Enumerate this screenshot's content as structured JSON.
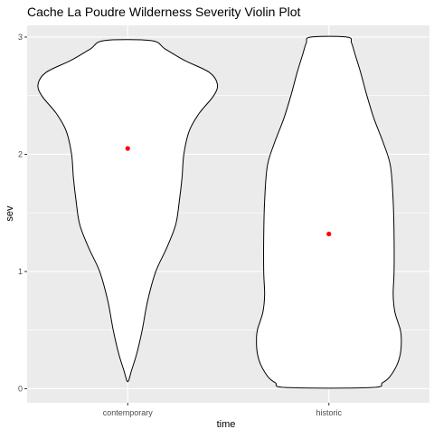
{
  "chart_data": {
    "type": "violin",
    "title": "Cache La Poudre Wilderness Severity Violin Plot",
    "xlabel": "time",
    "ylabel": "sev",
    "categories": [
      "contemporary",
      "historic"
    ],
    "ylim": [
      -0.12,
      3.1
    ],
    "y_ticks": [
      0,
      1,
      2,
      3
    ],
    "grid": true,
    "background": "#ebebeb",
    "grid_color": "#ffffff",
    "violin_fill": "#ffffff",
    "violin_stroke": "#000000",
    "point_color": "#ff0000",
    "means": [
      {
        "category": "contemporary",
        "value": 2.05
      },
      {
        "category": "historic",
        "value": 1.32
      }
    ],
    "density_halfwidth_fraction": [
      {
        "category": "contemporary",
        "profile": [
          [
            0.07,
            0.01
          ],
          [
            0.15,
            0.04
          ],
          [
            0.3,
            0.1
          ],
          [
            0.5,
            0.16
          ],
          [
            0.75,
            0.22
          ],
          [
            1.0,
            0.31
          ],
          [
            1.2,
            0.43
          ],
          [
            1.4,
            0.53
          ],
          [
            1.6,
            0.57
          ],
          [
            1.8,
            0.6
          ],
          [
            2.0,
            0.62
          ],
          [
            2.2,
            0.68
          ],
          [
            2.35,
            0.79
          ],
          [
            2.5,
            0.95
          ],
          [
            2.6,
            0.99
          ],
          [
            2.7,
            0.9
          ],
          [
            2.8,
            0.63
          ],
          [
            2.9,
            0.41
          ],
          [
            2.97,
            0.26
          ]
        ]
      },
      {
        "category": "historic",
        "profile": [
          [
            0.01,
            0.47
          ],
          [
            0.05,
            0.59
          ],
          [
            0.1,
            0.67
          ],
          [
            0.2,
            0.75
          ],
          [
            0.3,
            0.79
          ],
          [
            0.4,
            0.8
          ],
          [
            0.5,
            0.79
          ],
          [
            0.65,
            0.73
          ],
          [
            0.8,
            0.71
          ],
          [
            1.0,
            0.72
          ],
          [
            1.3,
            0.72
          ],
          [
            1.6,
            0.71
          ],
          [
            1.9,
            0.68
          ],
          [
            2.1,
            0.6
          ],
          [
            2.3,
            0.5
          ],
          [
            2.5,
            0.42
          ],
          [
            2.7,
            0.35
          ],
          [
            2.85,
            0.29
          ],
          [
            2.95,
            0.25
          ],
          [
            3.0,
            0.2
          ]
        ]
      }
    ]
  }
}
